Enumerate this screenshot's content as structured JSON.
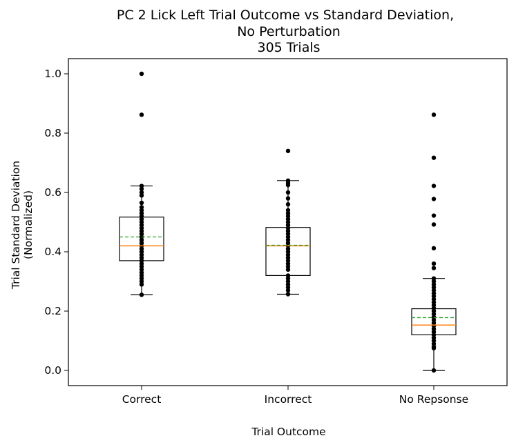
{
  "chart_data": {
    "type": "box",
    "title": [
      "PC 2 Lick Left Trial Outcome vs Standard Deviation,",
      "No Perturbation",
      "305 Trials"
    ],
    "xlabel": "Trial Outcome",
    "ylabel": [
      "Trial Standard Deviation",
      "(Normalized)"
    ],
    "ylim": [
      -0.05,
      1.05
    ],
    "yticks": [
      0.0,
      0.2,
      0.4,
      0.6,
      0.8,
      1.0
    ],
    "ytick_labels": [
      "0.0",
      "0.2",
      "0.4",
      "0.6",
      "0.8",
      "1.0"
    ],
    "categories": [
      "Correct",
      "Incorrect",
      "No Repsonse"
    ],
    "boxes": [
      {
        "category": "Correct",
        "whisker_low": 0.255,
        "q1": 0.37,
        "median": 0.42,
        "mean": 0.45,
        "q3": 0.517,
        "whisker_high": 0.622,
        "points": [
          1.0,
          0.862,
          0.622,
          0.612,
          0.6,
          0.59,
          0.565,
          0.55,
          0.54,
          0.53,
          0.52,
          0.51,
          0.5,
          0.49,
          0.48,
          0.47,
          0.46,
          0.45,
          0.44,
          0.43,
          0.42,
          0.41,
          0.4,
          0.39,
          0.38,
          0.37,
          0.36,
          0.35,
          0.34,
          0.33,
          0.32,
          0.31,
          0.3,
          0.29,
          0.255
        ]
      },
      {
        "category": "Incorrect",
        "whisker_low": 0.257,
        "q1": 0.32,
        "median": 0.42,
        "mean": 0.422,
        "q3": 0.482,
        "whisker_high": 0.64,
        "points": [
          0.74,
          0.64,
          0.632,
          0.625,
          0.6,
          0.58,
          0.56,
          0.54,
          0.53,
          0.52,
          0.51,
          0.5,
          0.49,
          0.48,
          0.47,
          0.46,
          0.45,
          0.44,
          0.43,
          0.42,
          0.41,
          0.4,
          0.39,
          0.38,
          0.37,
          0.36,
          0.35,
          0.34,
          0.32,
          0.31,
          0.3,
          0.29,
          0.28,
          0.27,
          0.257
        ]
      },
      {
        "category": "No Repsonse",
        "whisker_low": 0.0,
        "q1": 0.12,
        "median": 0.153,
        "mean": 0.178,
        "q3": 0.208,
        "whisker_high": 0.31,
        "points": [
          0.862,
          0.717,
          0.622,
          0.578,
          0.522,
          0.492,
          0.412,
          0.36,
          0.345,
          0.31,
          0.3,
          0.29,
          0.28,
          0.27,
          0.26,
          0.25,
          0.24,
          0.23,
          0.22,
          0.21,
          0.2,
          0.19,
          0.18,
          0.17,
          0.16,
          0.15,
          0.14,
          0.13,
          0.12,
          0.11,
          0.1,
          0.09,
          0.08,
          0.075,
          0.0
        ]
      }
    ],
    "colors": {
      "median": "#ff7f0e",
      "mean": "#2ca02c",
      "box": "#000000",
      "points": "#000000"
    },
    "grid": false
  }
}
